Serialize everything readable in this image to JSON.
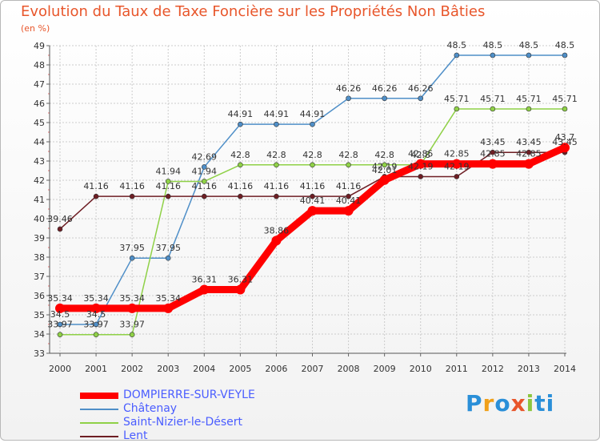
{
  "chart_data": {
    "type": "line",
    "title": "Evolution du Taux de Taxe Foncière sur les Propriétés Non Bâties",
    "ylabel": "(en %)",
    "xlabel": "",
    "categories": [
      "2000",
      "2001",
      "2002",
      "2003",
      "2004",
      "2005",
      "2006",
      "2007",
      "2008",
      "2009",
      "2010",
      "2011",
      "2012",
      "2013",
      "2014"
    ],
    "ylim": [
      33,
      49
    ],
    "yticks": [
      33,
      34,
      35,
      36,
      37,
      38,
      39,
      40,
      41,
      42,
      43,
      44,
      45,
      46,
      47,
      48,
      49
    ],
    "grid": true,
    "legend_position": "bottom-left",
    "series": [
      {
        "name": "DOMPIERRE-SUR-VEYLE",
        "color": "#ff0000",
        "style": "thick",
        "values": [
          35.34,
          35.34,
          35.34,
          35.34,
          36.31,
          36.31,
          38.86,
          40.41,
          40.41,
          42.01,
          42.85,
          42.85,
          42.85,
          42.85,
          43.7
        ],
        "labels": [
          "35.34",
          "35.34",
          "35.34",
          "35.34",
          "36.31",
          "36.31",
          "38.86",
          "40.41",
          "40.41",
          "42.01",
          "42.85",
          "42.85",
          "42.85",
          "42.85",
          "43.7"
        ]
      },
      {
        "name": "Châtenay",
        "color": "#4f8fc8",
        "style": "thin",
        "values": [
          34.5,
          34.5,
          37.95,
          37.95,
          42.69,
          44.91,
          44.91,
          44.91,
          46.26,
          46.26,
          46.26,
          48.5,
          48.5,
          48.5,
          48.5
        ],
        "labels": [
          "34.5",
          "34.5",
          "37.95",
          "37.95",
          "42.69",
          "44.91",
          "44.91",
          "44.91",
          "46.26",
          "46.26",
          "46.26",
          "48.5",
          "48.5",
          "48.5",
          "48.5"
        ]
      },
      {
        "name": "Saint-Nizier-le-Désert",
        "color": "#8fd147",
        "style": "thin",
        "values": [
          33.97,
          33.97,
          33.97,
          41.94,
          41.94,
          42.8,
          42.8,
          42.8,
          42.8,
          42.8,
          42.8,
          45.71,
          45.71,
          45.71,
          45.71
        ],
        "labels": [
          "33.97",
          "33.97",
          "33.97",
          "41.94",
          "41.94",
          "42.8",
          "42.8",
          "42.8",
          "42.8",
          "42.8",
          "42.8",
          "45.71",
          "45.71",
          "45.71",
          "45.71"
        ]
      },
      {
        "name": "Lent",
        "color": "#6e1e24",
        "style": "thin",
        "values": [
          39.46,
          41.16,
          41.16,
          41.16,
          41.16,
          41.16,
          41.16,
          41.16,
          41.16,
          42.19,
          42.19,
          42.19,
          43.45,
          43.45,
          43.45
        ],
        "labels": [
          "39.46",
          "41.16",
          "41.16",
          "41.16",
          "41.16",
          "41.16",
          "41.16",
          "41.16",
          "41.16",
          "42.19",
          "42.19",
          "42.19",
          "43.45",
          "43.45",
          "43.45"
        ]
      }
    ]
  },
  "logo": {
    "letters": [
      "P",
      "r",
      "o",
      "x",
      "i",
      "ti"
    ]
  }
}
